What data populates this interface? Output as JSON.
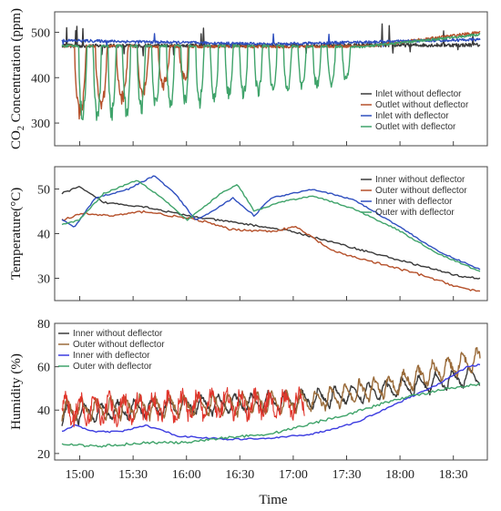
{
  "chart_data": {
    "type": "line",
    "x_axis": {
      "label": "Time",
      "ticks": [
        "15:00",
        "15:30",
        "16:00",
        "16:30",
        "17:00",
        "17:30",
        "18:00",
        "18:30"
      ],
      "range": [
        "14:50",
        "18:45"
      ]
    },
    "panels": [
      {
        "id": "co2",
        "ylabel_pre": "CO",
        "ylabel_sub": "2",
        "ylabel_post": " Concentration (ppm)",
        "ylim": [
          250,
          545
        ],
        "yticks": [
          300,
          400,
          500
        ],
        "legend_position": "right",
        "series": [
          {
            "name": "Inlet without deflector",
            "color": "#3a3a3a",
            "style": "steady",
            "base": [
              [
                0,
                470
              ],
              [
                1,
                472
              ]
            ],
            "noise": 8,
            "spikes": 18,
            "spike_amp": 55
          },
          {
            "name": "Outlet without deflector",
            "color": "#b5502a",
            "style": "dips",
            "base": [
              [
                0,
                470
              ],
              [
                0.5,
                468
              ],
              [
                0.74,
                470
              ],
              [
                1,
                500
              ]
            ],
            "start": 0.03,
            "end": 0.3,
            "depth": 170,
            "period": 0.05,
            "noise": 6
          },
          {
            "name": "Inlet with deflector",
            "color": "#2f4fbf",
            "style": "steady",
            "base": [
              [
                0,
                482
              ],
              [
                0.5,
                474
              ],
              [
                1,
                484
              ]
            ],
            "noise": 6,
            "spikes": 8,
            "spike_amp": 25
          },
          {
            "name": "Outlet with deflector",
            "color": "#3fa36a",
            "style": "dips",
            "base": [
              [
                0,
                470
              ],
              [
                0.5,
                470
              ],
              [
                0.72,
                468
              ],
              [
                1,
                495
              ]
            ],
            "start": 0.04,
            "end": 0.7,
            "depth": 180,
            "period": 0.035,
            "noise": 5
          }
        ]
      },
      {
        "id": "temperature",
        "ylabel": "Temperature(°C)",
        "ylim": [
          25,
          55
        ],
        "yticks": [
          30,
          40,
          50
        ],
        "legend_position": "right",
        "series": [
          {
            "name": "Inner without deflector",
            "color": "#3a3a3a",
            "style": "smooth",
            "base": [
              [
                0,
                49
              ],
              [
                0.04,
                50.5
              ],
              [
                0.1,
                47
              ],
              [
                0.2,
                46
              ],
              [
                0.3,
                44
              ],
              [
                0.45,
                42
              ],
              [
                0.55,
                40.5
              ],
              [
                0.65,
                38
              ],
              [
                0.75,
                35.5
              ],
              [
                0.85,
                33
              ],
              [
                0.95,
                30.5
              ],
              [
                1,
                30
              ]
            ],
            "noise": 0.4
          },
          {
            "name": "Outer without deflector",
            "color": "#b5502a",
            "style": "smooth",
            "base": [
              [
                0,
                43
              ],
              [
                0.05,
                44.5
              ],
              [
                0.12,
                44
              ],
              [
                0.2,
                45
              ],
              [
                0.26,
                44
              ],
              [
                0.33,
                43
              ],
              [
                0.4,
                41
              ],
              [
                0.5,
                40.5
              ],
              [
                0.56,
                41.5
              ],
              [
                0.65,
                36
              ],
              [
                0.75,
                33.5
              ],
              [
                0.85,
                31
              ],
              [
                0.95,
                28
              ],
              [
                1,
                27
              ]
            ],
            "noise": 0.5
          },
          {
            "name": "Inner with deflector",
            "color": "#2f4fbf",
            "style": "smooth",
            "base": [
              [
                0,
                43
              ],
              [
                0.03,
                41.5
              ],
              [
                0.08,
                48
              ],
              [
                0.16,
                50
              ],
              [
                0.22,
                53
              ],
              [
                0.27,
                49
              ],
              [
                0.32,
                43
              ],
              [
                0.36,
                45
              ],
              [
                0.41,
                48
              ],
              [
                0.46,
                44
              ],
              [
                0.5,
                48
              ],
              [
                0.6,
                50
              ],
              [
                0.7,
                47.5
              ],
              [
                0.8,
                42
              ],
              [
                0.9,
                36
              ],
              [
                1,
                32
              ]
            ],
            "noise": 0.3
          },
          {
            "name": "Outer with deflector",
            "color": "#3fa36a",
            "style": "smooth",
            "base": [
              [
                0,
                42
              ],
              [
                0.04,
                43
              ],
              [
                0.1,
                49
              ],
              [
                0.18,
                52
              ],
              [
                0.24,
                48
              ],
              [
                0.3,
                43
              ],
              [
                0.38,
                49
              ],
              [
                0.42,
                51
              ],
              [
                0.46,
                45
              ],
              [
                0.52,
                47
              ],
              [
                0.6,
                48.5
              ],
              [
                0.7,
                45.5
              ],
              [
                0.8,
                41
              ],
              [
                0.9,
                35.5
              ],
              [
                1,
                31.5
              ]
            ],
            "noise": 0.3
          }
        ]
      },
      {
        "id": "humidity",
        "ylabel": "Humidity (%)",
        "ylim": [
          17,
          80
        ],
        "yticks": [
          20,
          40,
          60,
          80
        ],
        "legend_position": "top-left",
        "series": [
          {
            "name": "Inner without deflector",
            "color": "#3a3a3a",
            "style": "saw",
            "base": [
              [
                0,
                38
              ],
              [
                0.3,
                42
              ],
              [
                0.6,
                45
              ],
              [
                0.8,
                50
              ],
              [
                1,
                56
              ]
            ],
            "amp": 9,
            "period": 0.04,
            "noise": 2
          },
          {
            "name": "Outer without deflector",
            "color": "#9a6b3a",
            "style": "saw",
            "base": [
              [
                0,
                40
              ],
              [
                0.3,
                42
              ],
              [
                0.6,
                44
              ],
              [
                0.8,
                52
              ],
              [
                1,
                64
              ]
            ],
            "amp": 10,
            "period": 0.035,
            "noise": 3
          },
          {
            "name": "Inner with deflector",
            "color": "#3c3ce0",
            "style": "smooth",
            "base": [
              [
                0,
                30
              ],
              [
                0.03,
                33
              ],
              [
                0.08,
                30
              ],
              [
                0.14,
                30
              ],
              [
                0.2,
                33
              ],
              [
                0.28,
                28
              ],
              [
                0.4,
                26.5
              ],
              [
                0.5,
                27
              ],
              [
                0.6,
                29
              ],
              [
                0.7,
                34
              ],
              [
                0.8,
                43
              ],
              [
                0.9,
                52
              ],
              [
                0.97,
                60
              ],
              [
                1,
                61
              ]
            ],
            "noise": 0.7
          },
          {
            "name": "Outer with deflector",
            "color": "#3fa36a",
            "style": "smooth",
            "base": [
              [
                0,
                24
              ],
              [
                0.1,
                23.5
              ],
              [
                0.2,
                25
              ],
              [
                0.3,
                25
              ],
              [
                0.4,
                27.5
              ],
              [
                0.5,
                29
              ],
              [
                0.6,
                34
              ],
              [
                0.7,
                39
              ],
              [
                0.8,
                45
              ],
              [
                0.9,
                49
              ],
              [
                1,
                52
              ]
            ],
            "noise": 1.2
          },
          {
            "name": "",
            "color": "#e0342a",
            "style": "noise",
            "base": [
              [
                0,
                40
              ],
              [
                0.3,
                42
              ],
              [
                0.6,
                43
              ],
              [
                0.8,
                50
              ],
              [
                1,
                58
              ]
            ],
            "amp": 12,
            "start": 0.0,
            "end": 0.58,
            "noise": 8
          }
        ]
      }
    ]
  }
}
